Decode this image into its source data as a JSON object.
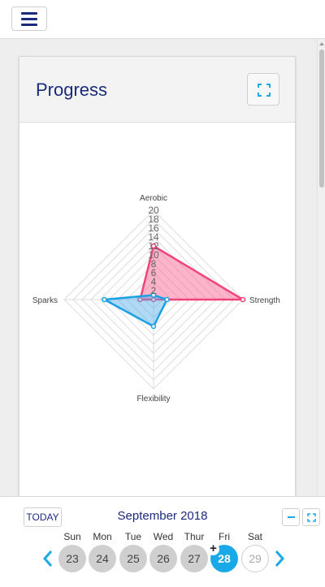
{
  "header": {
    "menu_icon": "hamburger-menu-icon"
  },
  "card": {
    "title": "Progress",
    "expand_icon": "fullscreen-icon"
  },
  "chart_data": {
    "type": "radar",
    "axes": [
      "Aerobic",
      "Strength",
      "Flexibility",
      "Sparks"
    ],
    "ticks": [
      "20",
      "18",
      "16",
      "14",
      "12",
      "10",
      "8",
      "6",
      "4",
      "2"
    ],
    "range": [
      0,
      20
    ],
    "grid": true,
    "series": [
      {
        "values": [
          12,
          20,
          0,
          3
        ],
        "color": "#f0457a",
        "fill": "rgba(247,105,150,0.5)"
      },
      {
        "values": [
          1,
          3,
          6,
          11
        ],
        "color": "#1aa0e4",
        "fill": "rgba(80,170,235,0.45)"
      }
    ]
  },
  "calendar": {
    "today_label": "TODAY",
    "month_label": "September 2018",
    "collapse_icon": "minus-icon",
    "fullscreen_icon": "fullscreen-icon",
    "prev_icon": "chevron-left-icon",
    "next_icon": "chevron-right-icon",
    "add_icon": "plus-icon",
    "days": [
      {
        "dow": "Sun",
        "date": "23",
        "state": "past"
      },
      {
        "dow": "Mon",
        "date": "24",
        "state": "past"
      },
      {
        "dow": "Tue",
        "date": "25",
        "state": "past"
      },
      {
        "dow": "Wed",
        "date": "26",
        "state": "past"
      },
      {
        "dow": "Thur",
        "date": "27",
        "state": "past"
      },
      {
        "dow": "Fri",
        "date": "28",
        "state": "today"
      },
      {
        "dow": "Sat",
        "date": "29",
        "state": "future"
      }
    ],
    "accent_color": "#1aa9e8"
  }
}
